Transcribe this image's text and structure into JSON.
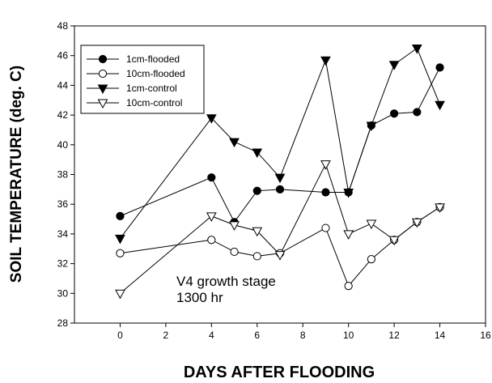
{
  "chart_data": {
    "type": "line",
    "xlabel": "DAYS AFTER FLOODING",
    "ylabel": "SOIL TEMPERATURE  (deg. C)",
    "xlim": [
      -2,
      16
    ],
    "ylim": [
      28,
      48
    ],
    "xticks": [
      0,
      2,
      4,
      6,
      8,
      10,
      12,
      14,
      16
    ],
    "yticks": [
      28,
      30,
      32,
      34,
      36,
      38,
      40,
      42,
      44,
      46,
      48
    ],
    "grid": false,
    "legend_position": "top-left",
    "annotation": [
      "V4 growth stage",
      "1300 hr"
    ],
    "x": [
      0,
      4,
      5,
      6,
      7,
      9,
      10,
      11,
      12,
      13,
      14
    ],
    "series": [
      {
        "name": "1cm-flooded",
        "marker": "filled-circle",
        "values": [
          35.2,
          37.8,
          34.8,
          36.9,
          37.0,
          36.8,
          36.8,
          41.3,
          42.1,
          42.2,
          45.2
        ]
      },
      {
        "name": "10cm-flooded",
        "marker": "open-circle",
        "values": [
          32.7,
          33.6,
          32.8,
          32.5,
          32.7,
          34.4,
          30.5,
          32.3,
          33.6,
          34.8,
          35.8
        ]
      },
      {
        "name": "1cm-control",
        "marker": "filled-triangle-down",
        "values": [
          33.7,
          41.8,
          40.2,
          39.5,
          37.8,
          45.7,
          36.8,
          41.3,
          45.4,
          46.5,
          42.7
        ]
      },
      {
        "name": "10cm-control",
        "marker": "open-triangle-down",
        "values": [
          30.0,
          35.2,
          34.6,
          34.2,
          32.6,
          38.7,
          34.0,
          34.7,
          33.6,
          34.8,
          35.8
        ]
      }
    ]
  }
}
